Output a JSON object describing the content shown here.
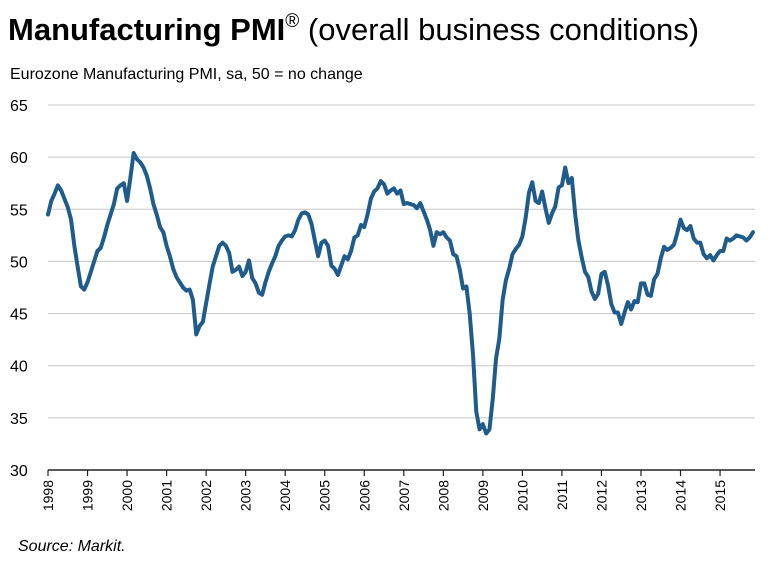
{
  "chart_data": {
    "type": "line",
    "title": "Manufacturing PMI",
    "title_mark": "®",
    "title_suffix": " (overall business conditions)",
    "subtitle": "Eurozone Manufacturing PMI, sa, 50 = no change",
    "source": "Source: Markit.",
    "color": "#1f5c8b",
    "ylim": [
      30,
      65
    ],
    "yticks": [
      30,
      35,
      40,
      45,
      50,
      55,
      60,
      65
    ],
    "grid": true,
    "categories": [
      "1998",
      null,
      null,
      null,
      null,
      null,
      null,
      null,
      null,
      null,
      null,
      null,
      "1999",
      null,
      null,
      null,
      null,
      null,
      null,
      null,
      null,
      null,
      null,
      null,
      "2000",
      null,
      null,
      null,
      null,
      null,
      null,
      null,
      null,
      null,
      null,
      null,
      "2001",
      null,
      null,
      null,
      null,
      null,
      null,
      null,
      null,
      null,
      null,
      null,
      "2002",
      null,
      null,
      null,
      null,
      null,
      null,
      null,
      null,
      null,
      null,
      null,
      "2003",
      null,
      null,
      null,
      null,
      null,
      null,
      null,
      null,
      null,
      null,
      null,
      "2004",
      null,
      null,
      null,
      null,
      null,
      null,
      null,
      null,
      null,
      null,
      null,
      "2005",
      null,
      null,
      null,
      null,
      null,
      null,
      null,
      null,
      null,
      null,
      null,
      "2006",
      null,
      null,
      null,
      null,
      null,
      null,
      null,
      null,
      null,
      null,
      null,
      "2007",
      null,
      null,
      null,
      null,
      null,
      null,
      null,
      null,
      null,
      null,
      null,
      "2008",
      null,
      null,
      null,
      null,
      null,
      null,
      null,
      null,
      null,
      null,
      null,
      "2009",
      null,
      null,
      null,
      null,
      null,
      null,
      null,
      null,
      null,
      null,
      null,
      "2010",
      null,
      null,
      null,
      null,
      null,
      null,
      null,
      null,
      null,
      null,
      null,
      "2011",
      null,
      null,
      null,
      null,
      null,
      null,
      null,
      null,
      null,
      null,
      null,
      "2012",
      null,
      null,
      null,
      null,
      null,
      null,
      null,
      null,
      null,
      null,
      null,
      "2013",
      null,
      null,
      null,
      null,
      null,
      null,
      null,
      null,
      null,
      null,
      null,
      "2014",
      null,
      null,
      null,
      null,
      null,
      null,
      null,
      null,
      null,
      null,
      null,
      "2015",
      null,
      null,
      null,
      null,
      null,
      null,
      null,
      null,
      null,
      null
    ],
    "values": [
      54.5,
      55.8,
      56.5,
      57.3,
      56.8,
      56.0,
      55.2,
      54.0,
      51.5,
      49.5,
      47.6,
      47.3,
      48.0,
      49.0,
      50.0,
      51.0,
      51.3,
      52.3,
      53.5,
      54.5,
      55.5,
      57.0,
      57.3,
      57.5,
      55.8,
      58.0,
      60.4,
      59.8,
      59.5,
      59.0,
      58.2,
      57.0,
      55.5,
      54.5,
      53.3,
      52.8,
      51.5,
      50.5,
      49.3,
      48.5,
      48.0,
      47.5,
      47.2,
      47.3,
      46.3,
      43.0,
      43.8,
      44.2,
      46.0,
      47.8,
      49.5,
      50.5,
      51.5,
      51.8,
      51.5,
      50.8,
      49.0,
      49.2,
      49.5,
      48.6,
      49.0,
      50.1,
      48.4,
      47.9,
      47.0,
      46.8,
      48.0,
      49.0,
      49.8,
      50.5,
      51.5,
      52.0,
      52.4,
      52.5,
      52.4,
      53.0,
      54.0,
      54.6,
      54.7,
      54.5,
      53.6,
      52.0,
      50.5,
      51.8,
      52.0,
      51.5,
      49.6,
      49.3,
      48.7,
      49.6,
      50.5,
      50.2,
      51.0,
      52.3,
      52.5,
      53.5,
      53.3,
      54.5,
      56.0,
      56.7,
      57.0,
      57.7,
      57.4,
      56.5,
      56.8,
      57.0,
      56.5,
      56.8,
      55.5,
      55.6,
      55.5,
      55.4,
      55.1,
      55.6,
      54.8,
      54.0,
      53.0,
      51.5,
      52.8,
      52.6,
      52.8,
      52.3,
      52.0,
      50.7,
      50.5,
      49.2,
      47.4,
      47.6,
      45.0,
      41.1,
      35.6,
      33.9,
      34.4,
      33.5,
      33.9,
      36.8,
      40.7,
      42.6,
      46.3,
      48.2,
      49.3,
      50.7,
      51.2,
      51.6,
      52.4,
      54.2,
      56.6,
      57.6,
      55.8,
      55.6,
      56.7,
      55.1,
      53.7,
      54.6,
      55.3,
      57.1,
      57.3,
      59.0,
      57.5,
      58.0,
      54.6,
      52.0,
      50.4,
      49.0,
      48.5,
      47.1,
      46.4,
      46.9,
      48.8,
      49.0,
      47.7,
      45.9,
      45.1,
      45.1,
      44.0,
      45.1,
      46.1,
      45.4,
      46.2,
      46.1,
      47.9,
      47.9,
      46.8,
      46.7,
      48.3,
      48.8,
      50.3,
      51.4,
      51.1,
      51.3,
      51.6,
      52.7,
      54.0,
      53.2,
      53.0,
      53.4,
      52.2,
      51.8,
      51.8,
      50.7,
      50.3,
      50.6,
      50.1,
      50.6,
      51.0,
      51.0,
      52.2,
      52.0,
      52.2,
      52.5,
      52.4,
      52.3,
      52.0,
      52.3,
      52.8
    ]
  }
}
